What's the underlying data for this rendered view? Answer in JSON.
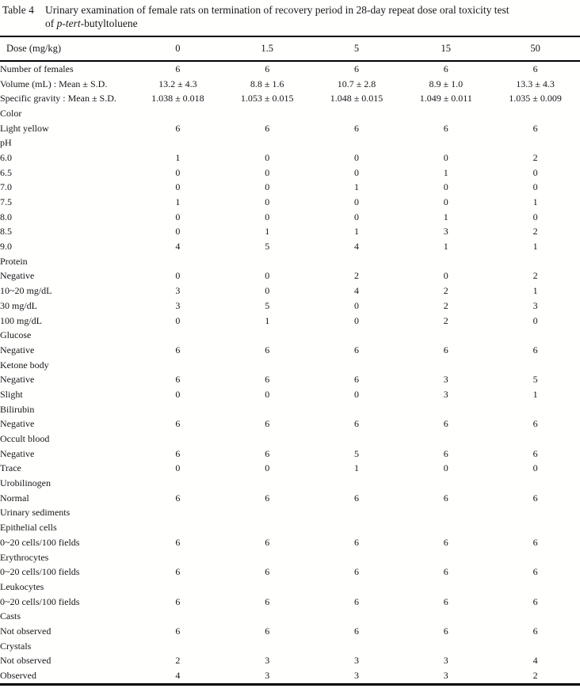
{
  "caption": {
    "label": "Table 4",
    "line1": "Urinary examination of female rats on termination of recovery period in 28-day repeat dose oral toxicity test",
    "line2_prefix": "of ",
    "line2_italic": "p-tert",
    "line2_suffix": "-butyltoluene"
  },
  "table": {
    "header": [
      "Dose (mg/kg)",
      "0",
      "1.5",
      "5",
      "15",
      "50"
    ],
    "rows": [
      {
        "label": "Number of females",
        "indent": 0,
        "values": [
          "6",
          "6",
          "6",
          "6",
          "6"
        ]
      },
      {
        "label": "Volume (mL) : Mean ± S.D.",
        "indent": 0,
        "values": [
          "13.2 ± 4.3",
          "8.8 ± 1.6",
          "10.7 ± 2.8",
          "8.9 ± 1.0",
          "13.3 ± 4.3"
        ]
      },
      {
        "label": "Specific gravity : Mean ± S.D.",
        "indent": 0,
        "values": [
          "1.038 ± 0.018",
          "1.053 ± 0.015",
          "1.048 ± 0.015",
          "1.049 ± 0.011",
          "1.035 ± 0.009"
        ]
      },
      {
        "label": "Color",
        "indent": 0,
        "values": []
      },
      {
        "label": "Light yellow",
        "indent": 1,
        "values": [
          "6",
          "6",
          "6",
          "6",
          "6"
        ]
      },
      {
        "label": "pH",
        "indent": 0,
        "values": []
      },
      {
        "label": "6.0",
        "indent": 1,
        "values": [
          "1",
          "0",
          "0",
          "0",
          "2"
        ]
      },
      {
        "label": "6.5",
        "indent": 1,
        "values": [
          "0",
          "0",
          "0",
          "1",
          "0"
        ]
      },
      {
        "label": "7.0",
        "indent": 1,
        "values": [
          "0",
          "0",
          "1",
          "0",
          "0"
        ]
      },
      {
        "label": "7.5",
        "indent": 1,
        "values": [
          "1",
          "0",
          "0",
          "0",
          "1"
        ]
      },
      {
        "label": "8.0",
        "indent": 1,
        "values": [
          "0",
          "0",
          "0",
          "1",
          "0"
        ]
      },
      {
        "label": "8.5",
        "indent": 1,
        "values": [
          "0",
          "1",
          "1",
          "3",
          "2"
        ]
      },
      {
        "label": "9.0",
        "indent": 1,
        "values": [
          "4",
          "5",
          "4",
          "1",
          "1"
        ]
      },
      {
        "label": "Protein",
        "indent": 0,
        "values": []
      },
      {
        "label": "Negative",
        "indent": 1,
        "values": [
          "0",
          "0",
          "2",
          "0",
          "2"
        ]
      },
      {
        "label": "10~20 mg/dL",
        "indent": 1,
        "values": [
          "3",
          "0",
          "4",
          "2",
          "1"
        ]
      },
      {
        "label": "30 mg/dL",
        "indent": 1,
        "values": [
          "3",
          "5",
          "0",
          "2",
          "3"
        ]
      },
      {
        "label": "100 mg/dL",
        "indent": 1,
        "values": [
          "0",
          "1",
          "0",
          "2",
          "0"
        ]
      },
      {
        "label": "Glucose",
        "indent": 0,
        "values": []
      },
      {
        "label": "Negative",
        "indent": 1,
        "values": [
          "6",
          "6",
          "6",
          "6",
          "6"
        ]
      },
      {
        "label": "Ketone body",
        "indent": 0,
        "values": []
      },
      {
        "label": "Negative",
        "indent": 1,
        "values": [
          "6",
          "6",
          "6",
          "3",
          "5"
        ]
      },
      {
        "label": "Slight",
        "indent": 1,
        "values": [
          "0",
          "0",
          "0",
          "3",
          "1"
        ]
      },
      {
        "label": "Bilirubin",
        "indent": 0,
        "values": []
      },
      {
        "label": "Negative",
        "indent": 1,
        "values": [
          "6",
          "6",
          "6",
          "6",
          "6"
        ]
      },
      {
        "label": "Occult blood",
        "indent": 0,
        "values": []
      },
      {
        "label": "Negative",
        "indent": 1,
        "values": [
          "6",
          "6",
          "5",
          "6",
          "6"
        ]
      },
      {
        "label": "Trace",
        "indent": 1,
        "values": [
          "0",
          "0",
          "1",
          "0",
          "0"
        ]
      },
      {
        "label": "Urobilinogen",
        "indent": 0,
        "values": []
      },
      {
        "label": "Normal",
        "indent": 1,
        "values": [
          "6",
          "6",
          "6",
          "6",
          "6"
        ]
      },
      {
        "label": "Urinary sediments",
        "indent": 0,
        "values": []
      },
      {
        "label": "Epithelial cells",
        "indent": 1,
        "values": []
      },
      {
        "label": "0~20 cells/100 fields",
        "indent": 2,
        "values": [
          "6",
          "6",
          "6",
          "6",
          "6"
        ]
      },
      {
        "label": "Erythrocytes",
        "indent": 1,
        "values": []
      },
      {
        "label": "0~20 cells/100 fields",
        "indent": 2,
        "values": [
          "6",
          "6",
          "6",
          "6",
          "6"
        ]
      },
      {
        "label": "Leukocytes",
        "indent": 1,
        "values": []
      },
      {
        "label": "0~20 cells/100 fields",
        "indent": 2,
        "values": [
          "6",
          "6",
          "6",
          "6",
          "6"
        ]
      },
      {
        "label": "Casts",
        "indent": 1,
        "values": []
      },
      {
        "label": "Not observed",
        "indent": 2,
        "values": [
          "6",
          "6",
          "6",
          "6",
          "6"
        ]
      },
      {
        "label": "Crystals",
        "indent": 1,
        "values": []
      },
      {
        "label": "Not observed",
        "indent": 2,
        "values": [
          "2",
          "3",
          "3",
          "3",
          "4"
        ]
      },
      {
        "label": "Observed",
        "indent": 2,
        "values": [
          "4",
          "3",
          "3",
          "3",
          "2"
        ]
      }
    ]
  }
}
